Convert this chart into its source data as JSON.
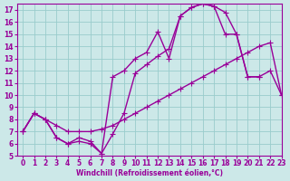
{
  "xlabel": "Windchill (Refroidissement éolien,°C)",
  "bg_color": "#cce8e8",
  "grid_color": "#99cccc",
  "line_color": "#990099",
  "xlim": [
    -0.5,
    23
  ],
  "ylim": [
    5,
    17.5
  ],
  "xticks": [
    0,
    1,
    2,
    3,
    4,
    5,
    6,
    7,
    8,
    9,
    10,
    11,
    12,
    13,
    14,
    15,
    16,
    17,
    18,
    19,
    20,
    21,
    22,
    23
  ],
  "yticks": [
    5,
    6,
    7,
    8,
    9,
    10,
    11,
    12,
    13,
    14,
    15,
    16,
    17
  ],
  "line1_x": [
    0,
    1,
    2,
    3,
    4,
    5,
    6,
    7,
    8,
    9,
    10,
    11,
    12,
    13,
    14,
    15,
    16,
    17,
    18,
    19,
    20,
    21,
    22,
    23
  ],
  "line1_y": [
    7.0,
    8.5,
    8.0,
    7.5,
    7.0,
    7.0,
    7.0,
    7.2,
    7.5,
    8.0,
    8.5,
    9.0,
    9.5,
    10.0,
    10.5,
    11.0,
    11.5,
    12.0,
    12.5,
    13.0,
    13.5,
    14.0,
    14.3,
    10.0
  ],
  "line2_x": [
    0,
    1,
    2,
    3,
    4,
    5,
    6,
    7,
    8,
    9,
    10,
    11,
    12,
    13,
    14,
    15,
    16,
    17,
    18,
    19,
    20,
    21,
    22,
    23
  ],
  "line2_y": [
    7.0,
    8.5,
    8.0,
    6.5,
    6.0,
    6.5,
    6.2,
    5.2,
    6.8,
    8.5,
    11.8,
    12.5,
    13.2,
    13.8,
    16.5,
    17.2,
    17.5,
    17.3,
    16.8,
    15.0,
    11.5,
    11.5,
    null,
    null
  ],
  "line3_x": [
    0,
    1,
    2,
    3,
    4,
    5,
    6,
    7,
    8,
    9,
    10,
    11,
    12,
    13,
    14,
    15,
    16,
    17,
    18,
    19,
    20,
    21,
    22,
    23
  ],
  "line3_y": [
    7.0,
    8.5,
    8.0,
    6.5,
    6.0,
    6.2,
    6.0,
    5.2,
    11.5,
    12.0,
    13.0,
    13.5,
    15.2,
    13.0,
    16.5,
    17.2,
    17.5,
    17.3,
    15.0,
    15.0,
    11.5,
    11.5,
    12.0,
    10.0
  ],
  "marker": "+",
  "markersize": 4,
  "linewidth": 1.0
}
